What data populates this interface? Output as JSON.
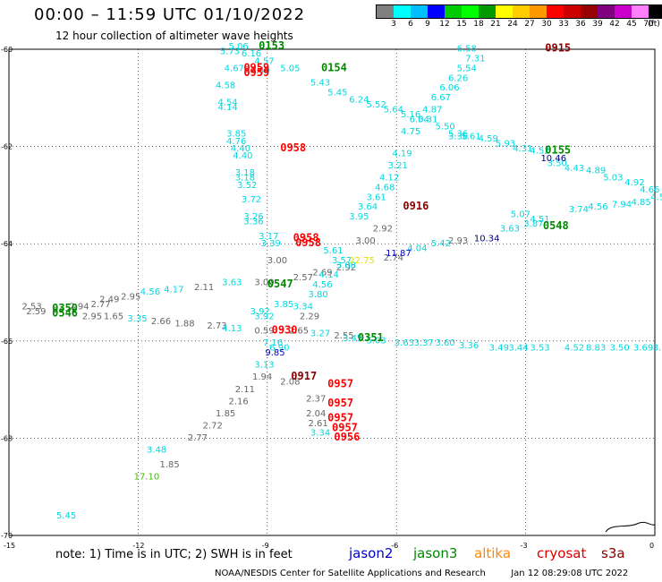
{
  "header": {
    "title": "00:00 – 11:59 UTC 01/10/2022",
    "subtitle": "12 hour collection of altimeter wave heights"
  },
  "colorbar": {
    "unit_label": "(ft)",
    "swatches": [
      "#808080",
      "#00ffff",
      "#00bfff",
      "#0000ff",
      "#00cc00",
      "#00ff00",
      "#009900",
      "#ffff00",
      "#ffcc00",
      "#ff9900",
      "#ff0000",
      "#cc0000",
      "#990000",
      "#800080",
      "#cc00cc",
      "#ff80ff",
      "#000000"
    ],
    "labels": [
      "3",
      "6",
      "9",
      "12",
      "15",
      "18",
      "21",
      "24",
      "27",
      "30",
      "33",
      "36",
      "39",
      "42",
      "45",
      "70"
    ]
  },
  "map": {
    "lon_labels": [
      "-15",
      "-12",
      "-9",
      "-6",
      "-3",
      "0"
    ],
    "lat_labels": [
      "-60",
      "-62",
      "-64",
      "-66",
      "-68",
      "-70"
    ],
    "lon_range": [
      -15,
      0
    ],
    "lat_range": [
      -70,
      -60
    ]
  },
  "colors": {
    "cyan": "#00d8e0",
    "gray": "#666666",
    "darkred": "#8b0000",
    "red": "#ff0000",
    "green": "#008800",
    "blue": "#0000cc",
    "yellow": "#e0e000",
    "lightgreen": "#44bb00",
    "navy": "#000080"
  },
  "points": [
    {
      "t": "6.58",
      "lon": -4.6,
      "lat": -60.05,
      "c": "cyan"
    },
    {
      "t": "7.31",
      "lon": -4.4,
      "lat": -60.25,
      "c": "cyan"
    },
    {
      "t": "5.54",
      "lon": -4.6,
      "lat": -60.45,
      "c": "cyan"
    },
    {
      "t": "6.26",
      "lon": -4.8,
      "lat": -60.65,
      "c": "cyan"
    },
    {
      "t": "6.06",
      "lon": -5.0,
      "lat": -60.85,
      "c": "cyan"
    },
    {
      "t": "6.67",
      "lon": -5.2,
      "lat": -61.05,
      "c": "cyan"
    },
    {
      "t": "4.87",
      "lon": -5.4,
      "lat": -61.3,
      "c": "cyan"
    },
    {
      "t": "6.04",
      "lon": -5.7,
      "lat": -61.5,
      "c": "cyan"
    },
    {
      "t": "4.75",
      "lon": -5.9,
      "lat": -61.75,
      "c": "cyan"
    },
    {
      "t": "4.19",
      "lon": -6.1,
      "lat": -62.2,
      "c": "cyan"
    },
    {
      "t": "3.21",
      "lon": -6.2,
      "lat": -62.45,
      "c": "cyan"
    },
    {
      "t": "4.12",
      "lon": -6.4,
      "lat": -62.7,
      "c": "cyan"
    },
    {
      "t": "4.68",
      "lon": -6.5,
      "lat": -62.9,
      "c": "cyan"
    },
    {
      "t": "3.61",
      "lon": -6.7,
      "lat": -63.1,
      "c": "cyan"
    },
    {
      "t": "3.64",
      "lon": -6.9,
      "lat": -63.3,
      "c": "cyan"
    },
    {
      "t": "3.95",
      "lon": -7.1,
      "lat": -63.5,
      "c": "cyan"
    },
    {
      "t": "5.06",
      "lon": -9.9,
      "lat": -60.0,
      "c": "cyan"
    },
    {
      "t": "5.73",
      "lon": -10.1,
      "lat": -60.1,
      "c": "cyan"
    },
    {
      "t": "6.16",
      "lon": -9.6,
      "lat": -60.15,
      "c": "cyan"
    },
    {
      "t": "4.57",
      "lon": -9.3,
      "lat": -60.3,
      "c": "cyan"
    },
    {
      "t": "4.67",
      "lon": -10.0,
      "lat": -60.45,
      "c": "cyan"
    },
    {
      "t": "4.49",
      "lon": -9.4,
      "lat": -60.5,
      "c": "cyan"
    },
    {
      "t": "5.05",
      "lon": -8.7,
      "lat": -60.45,
      "c": "cyan"
    },
    {
      "t": "5.43",
      "lon": -8.0,
      "lat": -60.75,
      "c": "cyan"
    },
    {
      "t": "5.45",
      "lon": -7.6,
      "lat": -60.95,
      "c": "cyan"
    },
    {
      "t": "6.24",
      "lon": -7.1,
      "lat": -61.1,
      "c": "cyan"
    },
    {
      "t": "5.52",
      "lon": -6.7,
      "lat": -61.2,
      "c": "cyan"
    },
    {
      "t": "5.64",
      "lon": -6.3,
      "lat": -61.3,
      "c": "cyan"
    },
    {
      "t": "5.16",
      "lon": -5.9,
      "lat": -61.4,
      "c": "cyan"
    },
    {
      "t": "5.31",
      "lon": -5.5,
      "lat": -61.5,
      "c": "cyan"
    },
    {
      "t": "5.50",
      "lon": -5.1,
      "lat": -61.65,
      "c": "cyan"
    },
    {
      "t": "5.36",
      "lon": -4.8,
      "lat": -61.8,
      "c": "cyan"
    },
    {
      "t": "5.61",
      "lon": -4.5,
      "lat": -61.85,
      "c": "cyan"
    },
    {
      "t": "4.59",
      "lon": -4.1,
      "lat": -61.9,
      "c": "cyan"
    },
    {
      "t": "5.93",
      "lon": -3.7,
      "lat": -62.0,
      "c": "cyan"
    },
    {
      "t": "4.31",
      "lon": -3.3,
      "lat": -62.1,
      "c": "cyan"
    },
    {
      "t": "4.52",
      "lon": -2.9,
      "lat": -62.15,
      "c": "cyan"
    },
    {
      "t": "3.50",
      "lon": -2.5,
      "lat": -62.4,
      "c": "cyan"
    },
    {
      "t": "4.43",
      "lon": -2.1,
      "lat": -62.5,
      "c": "cyan"
    },
    {
      "t": "4.89",
      "lon": -1.6,
      "lat": -62.55,
      "c": "cyan"
    },
    {
      "t": "5.03",
      "lon": -1.2,
      "lat": -62.7,
      "c": "cyan"
    },
    {
      "t": "4.92",
      "lon": -0.7,
      "lat": -62.8,
      "c": "cyan"
    },
    {
      "t": "4.66",
      "lon": -0.35,
      "lat": -62.95,
      "c": "cyan"
    },
    {
      "t": "4.59",
      "lon": -0.1,
      "lat": -63.1,
      "c": "cyan"
    },
    {
      "t": "4.58",
      "lon": -10.2,
      "lat": -60.8,
      "c": "cyan"
    },
    {
      "t": "4.54",
      "lon": -10.15,
      "lat": -61.15,
      "c": "cyan"
    },
    {
      "t": "4.14",
      "lon": -10.15,
      "lat": -61.25,
      "c": "cyan"
    },
    {
      "t": "3.85",
      "lon": -9.95,
      "lat": -61.8,
      "c": "cyan"
    },
    {
      "t": "4.76",
      "lon": -9.95,
      "lat": -61.95,
      "c": "cyan"
    },
    {
      "t": "4.40",
      "lon": -9.85,
      "lat": -62.1,
      "c": "cyan"
    },
    {
      "t": "4.40",
      "lon": -9.8,
      "lat": -62.25,
      "c": "cyan"
    },
    {
      "t": "3.18",
      "lon": -9.75,
      "lat": -62.6,
      "c": "cyan"
    },
    {
      "t": "3.18",
      "lon": -9.75,
      "lat": -62.7,
      "c": "cyan"
    },
    {
      "t": "3.52",
      "lon": -9.7,
      "lat": -62.85,
      "c": "cyan"
    },
    {
      "t": "3.72",
      "lon": -9.6,
      "lat": -63.15,
      "c": "cyan"
    },
    {
      "t": "3.26",
      "lon": -9.55,
      "lat": -63.5,
      "c": "cyan"
    },
    {
      "t": "3.36",
      "lon": -9.55,
      "lat": -63.6,
      "c": "cyan"
    },
    {
      "t": "3.17",
      "lon": -9.2,
      "lat": -63.9,
      "c": "cyan"
    },
    {
      "t": "3.39",
      "lon": -9.15,
      "lat": -64.05,
      "c": "cyan"
    },
    {
      "t": "3.00",
      "lon": -6.95,
      "lat": -64.0,
      "c": "gray"
    },
    {
      "t": "2.92",
      "lon": -6.55,
      "lat": -63.75,
      "c": "gray"
    },
    {
      "t": "3.00",
      "lon": -9.0,
      "lat": -64.4,
      "c": "gray"
    },
    {
      "t": "2.69",
      "lon": -7.95,
      "lat": -64.65,
      "c": "gray"
    },
    {
      "t": "2.92",
      "lon": -7.4,
      "lat": -64.55,
      "c": "gray"
    },
    {
      "t": "2.74",
      "lon": -6.3,
      "lat": -64.35,
      "c": "gray"
    },
    {
      "t": "3.00",
      "lon": -9.3,
      "lat": -64.85,
      "c": "gray"
    },
    {
      "t": "2.11",
      "lon": -10.7,
      "lat": -64.95,
      "c": "gray"
    },
    {
      "t": "2.95",
      "lon": -12.4,
      "lat": -65.15,
      "c": "gray"
    },
    {
      "t": "2.77",
      "lon": -13.1,
      "lat": -65.3,
      "c": "gray"
    },
    {
      "t": "2.49",
      "lon": -12.9,
      "lat": -65.2,
      "c": "gray"
    },
    {
      "t": "2.53",
      "lon": -14.7,
      "lat": -65.35,
      "c": "gray"
    },
    {
      "t": "2.59",
      "lon": -14.6,
      "lat": -65.45,
      "c": "gray"
    },
    {
      "t": "2.94",
      "lon": -13.6,
      "lat": -65.35,
      "c": "gray"
    },
    {
      "t": "2.95",
      "lon": -13.3,
      "lat": -65.55,
      "c": "gray"
    },
    {
      "t": "1.65",
      "lon": -12.8,
      "lat": -65.55,
      "c": "gray"
    },
    {
      "t": "2.66",
      "lon": -11.7,
      "lat": -65.65,
      "c": "gray"
    },
    {
      "t": "1.88",
      "lon": -11.15,
      "lat": -65.7,
      "c": "gray"
    },
    {
      "t": "2.73",
      "lon": -10.4,
      "lat": -65.75,
      "c": "gray"
    },
    {
      "t": "0.59",
      "lon": -9.3,
      "lat": -65.85,
      "c": "gray"
    },
    {
      "t": "2.29",
      "lon": -8.25,
      "lat": -65.55,
      "c": "gray"
    },
    {
      "t": "2.65",
      "lon": -8.5,
      "lat": -65.85,
      "c": "gray"
    },
    {
      "t": "2.55",
      "lon": -7.45,
      "lat": -65.95,
      "c": "gray"
    },
    {
      "t": "1.94",
      "lon": -9.35,
      "lat": -66.8,
      "c": "gray"
    },
    {
      "t": "2.11",
      "lon": -9.75,
      "lat": -67.05,
      "c": "gray"
    },
    {
      "t": "2.16",
      "lon": -9.9,
      "lat": -67.3,
      "c": "gray"
    },
    {
      "t": "1.85",
      "lon": -10.2,
      "lat": -67.55,
      "c": "gray"
    },
    {
      "t": "2.72",
      "lon": -10.5,
      "lat": -67.8,
      "c": "gray"
    },
    {
      "t": "2.77",
      "lon": -10.85,
      "lat": -68.05,
      "c": "gray"
    },
    {
      "t": "1.85",
      "lon": -11.5,
      "lat": -68.6,
      "c": "gray"
    },
    {
      "t": "2.08",
      "lon": -8.7,
      "lat": -66.9,
      "c": "gray"
    },
    {
      "t": "2.37",
      "lon": -8.1,
      "lat": -67.25,
      "c": "gray"
    },
    {
      "t": "2.04",
      "lon": -8.1,
      "lat": -67.55,
      "c": "gray"
    },
    {
      "t": "2.61",
      "lon": -8.05,
      "lat": -67.75,
      "c": "gray"
    },
    {
      "t": "2.93",
      "lon": -4.8,
      "lat": -64.0,
      "c": "gray"
    },
    {
      "t": "2.57",
      "lon": -8.4,
      "lat": -64.75,
      "c": "gray"
    },
    {
      "t": "5.61",
      "lon": -7.7,
      "lat": -64.2,
      "c": "cyan"
    },
    {
      "t": "3.57",
      "lon": -7.5,
      "lat": -64.4,
      "c": "cyan"
    },
    {
      "t": "3.08",
      "lon": -7.4,
      "lat": -64.5,
      "c": "cyan"
    },
    {
      "t": "4.14",
      "lon": -7.8,
      "lat": -64.7,
      "c": "cyan"
    },
    {
      "t": "4.56",
      "lon": -7.95,
      "lat": -64.9,
      "c": "cyan"
    },
    {
      "t": "3.80",
      "lon": -8.05,
      "lat": -65.1,
      "c": "cyan"
    },
    {
      "t": "3.34",
      "lon": -8.4,
      "lat": -65.35,
      "c": "cyan"
    },
    {
      "t": "3.85",
      "lon": -8.85,
      "lat": -65.3,
      "c": "cyan"
    },
    {
      "t": "3.63",
      "lon": -10.05,
      "lat": -64.85,
      "c": "cyan"
    },
    {
      "t": "4.17",
      "lon": -11.4,
      "lat": -65.0,
      "c": "cyan"
    },
    {
      "t": "4.56",
      "lon": -11.95,
      "lat": -65.05,
      "c": "cyan"
    },
    {
      "t": "3.35",
      "lon": -12.25,
      "lat": -65.6,
      "c": "cyan"
    },
    {
      "t": "4.13",
      "lon": -10.05,
      "lat": -65.8,
      "c": "cyan"
    },
    {
      "t": "3.92",
      "lon": -9.4,
      "lat": -65.45,
      "c": "cyan"
    },
    {
      "t": "3.92",
      "lon": -9.3,
      "lat": -65.55,
      "c": "cyan"
    },
    {
      "t": "3.27",
      "lon": -8.0,
      "lat": -65.9,
      "c": "cyan"
    },
    {
      "t": "3.45",
      "lon": -7.25,
      "lat": -66.0,
      "c": "cyan"
    },
    {
      "t": "7.16",
      "lon": -9.1,
      "lat": -66.1,
      "c": "cyan"
    },
    {
      "t": "6.90",
      "lon": -8.95,
      "lat": -66.2,
      "c": "cyan"
    },
    {
      "t": "3.13",
      "lon": -9.3,
      "lat": -66.55,
      "c": "cyan"
    },
    {
      "t": "3.34",
      "lon": -8.0,
      "lat": -67.95,
      "c": "cyan"
    },
    {
      "t": "3.48",
      "lon": -11.8,
      "lat": -68.3,
      "c": "cyan"
    },
    {
      "t": "5.45",
      "lon": -13.9,
      "lat": -69.65,
      "c": "cyan"
    },
    {
      "t": "5.07",
      "lon": -3.35,
      "lat": -63.45,
      "c": "cyan"
    },
    {
      "t": "4.51",
      "lon": -2.9,
      "lat": -63.55,
      "c": "cyan"
    },
    {
      "t": "3.74",
      "lon": -2.0,
      "lat": -63.35,
      "c": "cyan"
    },
    {
      "t": "4.56",
      "lon": -1.55,
      "lat": -63.3,
      "c": "cyan"
    },
    {
      "t": "7.94",
      "lon": -1.0,
      "lat": -63.25,
      "c": "cyan"
    },
    {
      "t": "4.85",
      "lon": -0.55,
      "lat": -63.2,
      "c": "cyan"
    },
    {
      "t": "3.87",
      "lon": -3.05,
      "lat": -63.65,
      "c": "cyan"
    },
    {
      "t": "3.63",
      "lon": -3.6,
      "lat": -63.75,
      "c": "cyan"
    },
    {
      "t": "5.42",
      "lon": -5.2,
      "lat": -64.05,
      "c": "cyan"
    },
    {
      "t": "4.04",
      "lon": -5.75,
      "lat": -64.15,
      "c": "cyan"
    },
    {
      "t": "5.03",
      "lon": -6.7,
      "lat": -66.05,
      "c": "cyan"
    },
    {
      "t": "3.63",
      "lon": -6.05,
      "lat": -66.1,
      "c": "cyan"
    },
    {
      "t": "3.37",
      "lon": -5.6,
      "lat": -66.1,
      "c": "cyan"
    },
    {
      "t": "3.60",
      "lon": -5.1,
      "lat": -66.1,
      "c": "cyan"
    },
    {
      "t": "3.36",
      "lon": -4.55,
      "lat": -66.15,
      "c": "cyan"
    },
    {
      "t": "3.49",
      "lon": -3.85,
      "lat": -66.2,
      "c": "cyan"
    },
    {
      "t": "3.44",
      "lon": -3.4,
      "lat": -66.2,
      "c": "cyan"
    },
    {
      "t": "3.53",
      "lon": -2.9,
      "lat": -66.2,
      "c": "cyan"
    },
    {
      "t": "4.52",
      "lon": -2.1,
      "lat": -66.2,
      "c": "cyan"
    },
    {
      "t": "8.83",
      "lon": -1.6,
      "lat": -66.2,
      "c": "cyan"
    },
    {
      "t": "3.50",
      "lon": -1.05,
      "lat": -66.2,
      "c": "cyan"
    },
    {
      "t": "3.69",
      "lon": -0.5,
      "lat": -66.2,
      "c": "cyan"
    },
    {
      "t": "3.53",
      "lon": -0.05,
      "lat": -66.2,
      "c": "cyan"
    },
    {
      "t": "11.87",
      "lon": -6.25,
      "lat": -64.25,
      "c": "blue"
    },
    {
      "t": "10.34",
      "lon": -4.2,
      "lat": -63.95,
      "c": "navy"
    },
    {
      "t": "10.46",
      "lon": -2.65,
      "lat": -62.3,
      "c": "navy"
    },
    {
      "t": "9.85",
      "lon": -9.05,
      "lat": -66.3,
      "c": "blue"
    },
    {
      "t": "22.75",
      "lon": -7.1,
      "lat": -64.4,
      "c": "yellow"
    },
    {
      "t": "17.10",
      "lon": -12.1,
      "lat": -68.85,
      "c": "lightgreen"
    },
    {
      "t": "3.36",
      "lon": -4.8,
      "lat": -61.85,
      "c": "cyan"
    }
  ],
  "passes": [
    {
      "t": "0153",
      "lon": -9.2,
      "lat": -60.0,
      "c": "green"
    },
    {
      "t": "0154",
      "lon": -7.75,
      "lat": -60.45,
      "c": "green"
    },
    {
      "t": "0155",
      "lon": -2.55,
      "lat": -62.15,
      "c": "green"
    },
    {
      "t": "0548",
      "lon": -2.6,
      "lat": -63.7,
      "c": "green"
    },
    {
      "t": "0547",
      "lon": -9.0,
      "lat": -64.9,
      "c": "green"
    },
    {
      "t": "0350",
      "lon": -14.0,
      "lat": -65.4,
      "c": "green"
    },
    {
      "t": "0546",
      "lon": -14.0,
      "lat": -65.5,
      "c": "green"
    },
    {
      "t": "0351",
      "lon": -6.9,
      "lat": -66.0,
      "c": "green"
    },
    {
      "t": "0959",
      "lon": -9.55,
      "lat": -60.45,
      "c": "red"
    },
    {
      "t": "0959",
      "lon": -9.55,
      "lat": -60.55,
      "c": "red"
    },
    {
      "t": "0958",
      "lon": -8.7,
      "lat": -62.1,
      "c": "red"
    },
    {
      "t": "0958",
      "lon": -8.4,
      "lat": -63.95,
      "c": "red"
    },
    {
      "t": "0958",
      "lon": -8.35,
      "lat": -64.05,
      "c": "red"
    },
    {
      "t": "0957",
      "lon": -7.6,
      "lat": -66.95,
      "c": "red"
    },
    {
      "t": "0957",
      "lon": -7.6,
      "lat": -67.35,
      "c": "red"
    },
    {
      "t": "0957",
      "lon": -7.6,
      "lat": -67.65,
      "c": "red"
    },
    {
      "t": "0957",
      "lon": -7.5,
      "lat": -67.85,
      "c": "red"
    },
    {
      "t": "0956",
      "lon": -7.45,
      "lat": -68.05,
      "c": "red"
    },
    {
      "t": "0930",
      "lon": -8.9,
      "lat": -65.85,
      "c": "red"
    },
    {
      "t": "0915",
      "lon": -2.55,
      "lat": -60.05,
      "c": "darkred"
    },
    {
      "t": "0916",
      "lon": -5.85,
      "lat": -63.3,
      "c": "darkred"
    },
    {
      "t": "0917",
      "lon": -8.45,
      "lat": -66.8,
      "c": "darkred"
    }
  ],
  "notes": {
    "text": "note: 1) Time is in UTC; 2) SWH is in feet",
    "satellites": [
      {
        "name": "jason2",
        "color": "#0000cc"
      },
      {
        "name": "jason3",
        "color": "#008800"
      },
      {
        "name": "altika",
        "color": "#ff8800"
      },
      {
        "name": "cryosat",
        "color": "#dd0000"
      },
      {
        "name": "s3a",
        "color": "#8b0000"
      }
    ],
    "credit": "NOAA/NESDIS Center for Satellite Applications and Research",
    "timestamp": "Jan 12 08:29:08 UTC 2022"
  }
}
